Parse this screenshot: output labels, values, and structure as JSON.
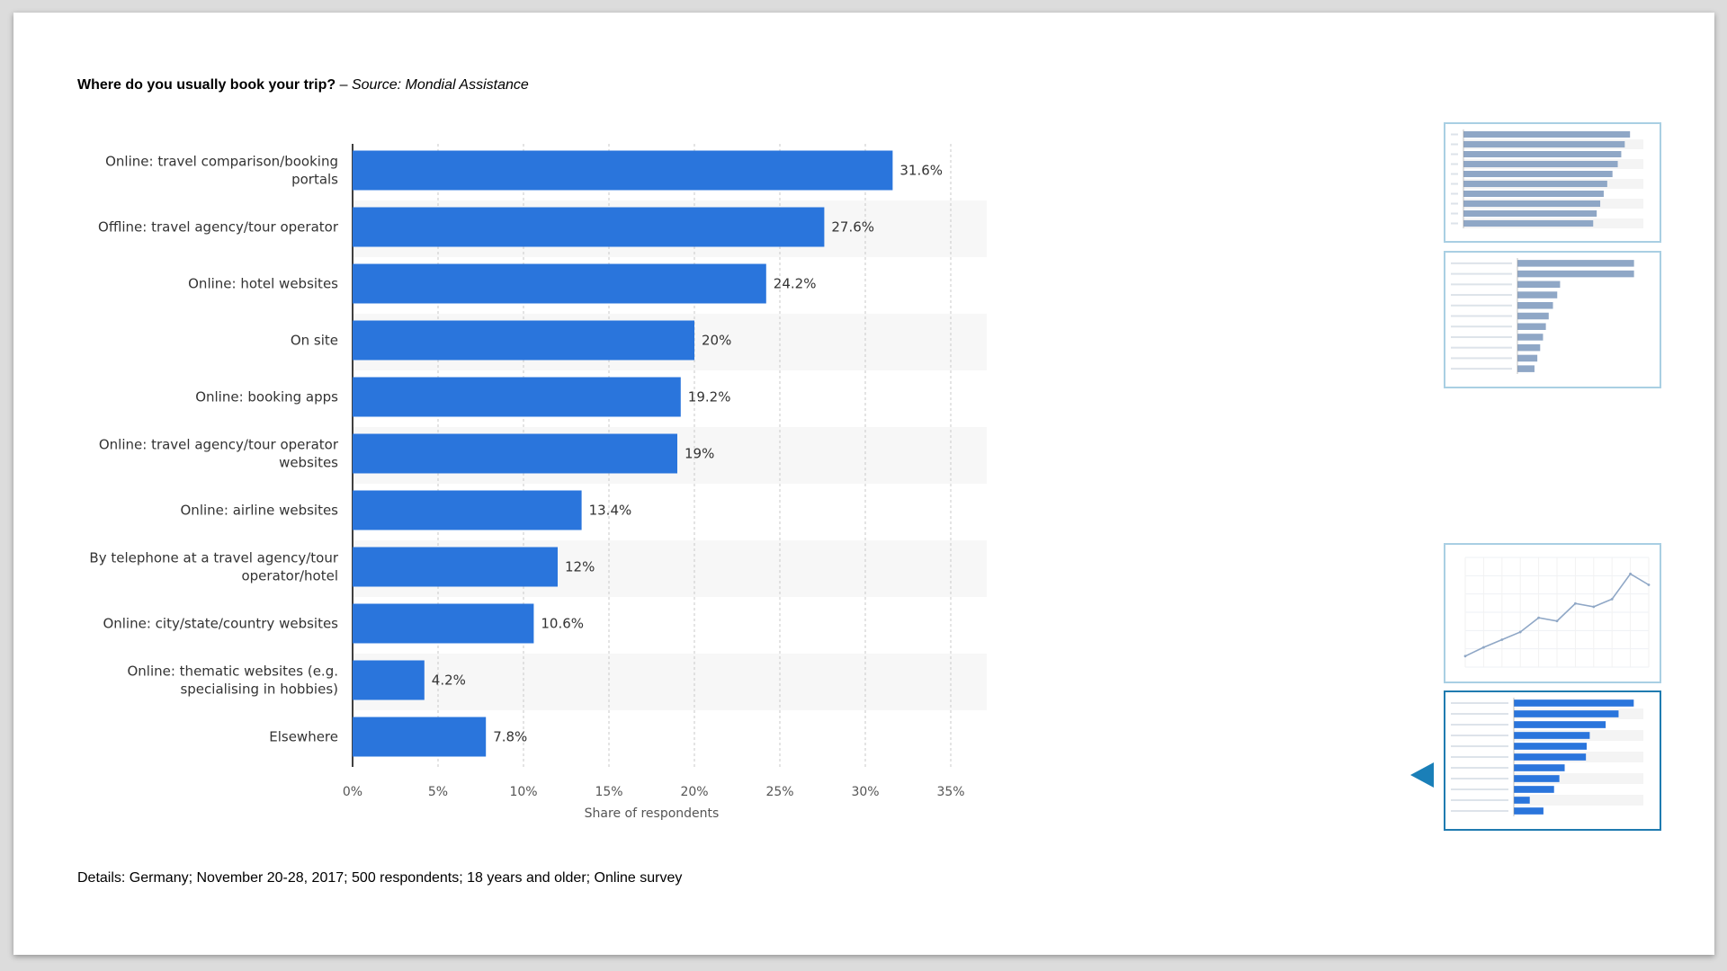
{
  "slide": {
    "title_question": "Where do you usually book your trip?",
    "title_sep": " – ",
    "title_source": "Source: Mondial Assistance",
    "details": "Details: Germany; November 20-28, 2017; 500 respondents; 18 years and older; Online survey"
  },
  "chart_data": {
    "type": "bar",
    "orientation": "horizontal",
    "categories": [
      "Online: travel comparison/booking portals",
      "Offline: travel agency/tour operator",
      "Online: hotel websites",
      "On site",
      "Online: booking apps",
      "Online: travel agency/tour operator websites",
      "Online: airline websites",
      "By telephone at a travel agency/tour operator/hotel",
      "Online: city/state/country websites",
      "Online: thematic websites (e.g. specialising in hobbies)",
      "Elsewhere"
    ],
    "category_lines": [
      [
        "Online: travel comparison/booking",
        "portals"
      ],
      [
        "Offline: travel agency/tour operator"
      ],
      [
        "Online: hotel websites"
      ],
      [
        "On site"
      ],
      [
        "Online: booking apps"
      ],
      [
        "Online: travel agency/tour operator",
        "websites"
      ],
      [
        "Online: airline websites"
      ],
      [
        "By telephone at a travel agency/tour",
        "operator/hotel"
      ],
      [
        "Online: city/state/country websites"
      ],
      [
        "Online: thematic websites (e.g.",
        "specialising in hobbies)"
      ],
      [
        "Elsewhere"
      ]
    ],
    "values": [
      31.6,
      27.6,
      24.2,
      20,
      19.2,
      19,
      13.4,
      12,
      10.6,
      4.2,
      7.8
    ],
    "value_labels": [
      "31.6%",
      "27.6%",
      "24.2%",
      "20%",
      "19.2%",
      "19%",
      "13.4%",
      "12%",
      "10.6%",
      "4.2%",
      "7.8%"
    ],
    "xlim": [
      0,
      35
    ],
    "xticks": [
      0,
      5,
      10,
      15,
      20,
      25,
      30,
      35
    ],
    "xtick_labels": [
      "0%",
      "5%",
      "10%",
      "15%",
      "20%",
      "25%",
      "30%",
      "35%"
    ],
    "xlabel": "Share of respondents",
    "grid": true,
    "bar_color": "#2a75dc"
  },
  "thumbnails": [
    {
      "name": "thumb-1",
      "type": "bar",
      "values": [
        95,
        92,
        90,
        88,
        85,
        82,
        80,
        78,
        76,
        74
      ]
    },
    {
      "name": "thumb-2",
      "type": "bar",
      "values": [
        82,
        82,
        30,
        28,
        25,
        22,
        20,
        18,
        16,
        14,
        12
      ]
    },
    {
      "name": "thumb-3",
      "type": "line",
      "values": [
        10,
        18,
        25,
        32,
        45,
        42,
        58,
        55,
        62,
        85,
        75
      ]
    },
    {
      "name": "thumb-4",
      "type": "bar",
      "values": [
        31.6,
        27.6,
        24.2,
        20,
        19.2,
        19,
        13.4,
        12,
        10.6,
        4.2,
        7.8
      ]
    }
  ]
}
